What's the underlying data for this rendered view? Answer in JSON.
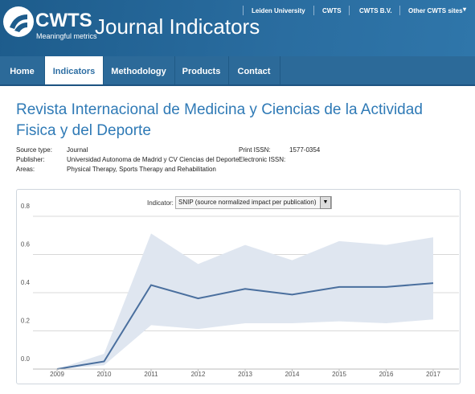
{
  "header": {
    "logo": "CWTS",
    "tagline": "Meaningful metrics",
    "title": "Journal Indicators",
    "links": [
      "Leiden University",
      "CWTS",
      "CWTS B.V.",
      "Other CWTS sites"
    ]
  },
  "nav": [
    "Home",
    "Indicators",
    "Methodology",
    "Products",
    "Contact"
  ],
  "journal": {
    "title": "Revista Internacional de Medicina y Ciencias de la Actividad Fisica y del Deporte",
    "left": [
      {
        "label": "Source type:",
        "value": "Journal"
      },
      {
        "label": "Publisher:",
        "value": "Universidad Autonoma de Madrid y CV Ciencias del Deporte"
      },
      {
        "label": "Areas:",
        "value": "Physical Therapy, Sports Therapy and Rehabilitation"
      }
    ],
    "right": [
      {
        "label": "Print ISSN:",
        "value": "1577-0354"
      },
      {
        "label": "Electronic ISSN:"
      }
    ]
  },
  "indicator": {
    "label": "Indicator:",
    "value": "SNIP (source normalized impact per publication)"
  },
  "chart_data": {
    "type": "line",
    "categories": [
      "2009",
      "2010",
      "2011",
      "2012",
      "2013",
      "2014",
      "2015",
      "2016",
      "2017"
    ],
    "series": [
      {
        "color": "#4a6f9e",
        "band_color": "#dfe6f0",
        "values": [
          0.0,
          0.04,
          0.44,
          0.37,
          0.42,
          0.39,
          0.43,
          0.43,
          0.45
        ],
        "upper": [
          0.0,
          0.08,
          0.71,
          0.55,
          0.65,
          0.57,
          0.67,
          0.65,
          0.69
        ],
        "lower": [
          0.0,
          0.02,
          0.23,
          0.21,
          0.24,
          0.24,
          0.25,
          0.24,
          0.26
        ]
      }
    ],
    "ylim": [
      0,
      0.8
    ],
    "yticks": [
      {
        "value": 0,
        "label": "0.0"
      },
      0.2,
      0.4,
      0.6,
      0.8
    ],
    "grid": true
  }
}
